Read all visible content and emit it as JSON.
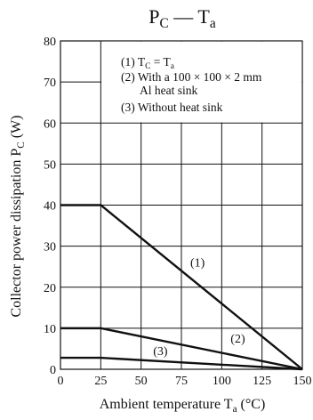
{
  "chart_data": {
    "type": "line",
    "title": {
      "main": "P",
      "main_sub": "C",
      "sep": " — ",
      "second": "T",
      "second_sub": "a"
    },
    "xlabel": {
      "text": "Ambient temperature  T",
      "sub": "a",
      "unit": "  (°C)"
    },
    "ylabel": {
      "text": "Collector power dissipation  P",
      "sub": "C",
      "unit": "  (W)"
    },
    "xlim": [
      0,
      150
    ],
    "ylim": [
      0,
      80
    ],
    "xticks": [
      0,
      25,
      50,
      75,
      100,
      125,
      150
    ],
    "yticks": [
      0,
      10,
      20,
      30,
      40,
      50,
      60,
      70,
      80
    ],
    "grid": true,
    "legend": {
      "placement": "top-right",
      "lines": [
        {
          "pre": "(1) T",
          "sub1": "C",
          "mid": " = T",
          "sub2": "a"
        },
        {
          "pre": "(2) With a 100 × 100 × 2 mm"
        },
        {
          "pre": "Al heat sink",
          "indent": true
        },
        {
          "pre": "(3) Without heat sink"
        }
      ]
    },
    "series": [
      {
        "name": "(1)",
        "x": [
          0,
          25,
          150
        ],
        "y": [
          40,
          40,
          0
        ],
        "label_at": [
          85,
          25
        ]
      },
      {
        "name": "(2)",
        "x": [
          0,
          25,
          150
        ],
        "y": [
          10,
          10,
          0
        ],
        "label_at": [
          110,
          6.5
        ]
      },
      {
        "name": "(3)",
        "x": [
          0,
          25,
          150
        ],
        "y": [
          2.8,
          2.8,
          0
        ],
        "label_at": [
          62,
          3.5
        ]
      }
    ]
  }
}
